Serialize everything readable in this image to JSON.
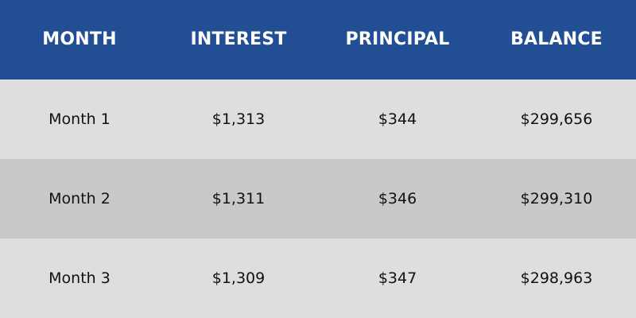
{
  "chart_data": {
    "type": "table",
    "columns": [
      "MONTH",
      "INTEREST",
      "PRINCIPAL",
      "BALANCE"
    ],
    "rows": [
      [
        "Month 1",
        "$1,313",
        "$344",
        "$299,656"
      ],
      [
        "Month 2",
        "$1,311",
        "$346",
        "$299,310"
      ],
      [
        "Month 3",
        "$1,309",
        "$347",
        "$298,963"
      ]
    ]
  },
  "colors": {
    "header_bg": "#224f93",
    "header_text": "#ffffff",
    "row_light": "#dededf",
    "row_dark": "#c8c9ca",
    "body_text": "#111111"
  }
}
